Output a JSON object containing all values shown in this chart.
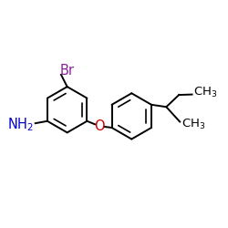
{
  "bg_color": "#ffffff",
  "bond_color": "#000000",
  "bond_lw": 1.4,
  "inner_lw": 1.2,
  "inner_scale": 0.74,
  "inner_shrink": 0.1,
  "r1cx": 0.275,
  "r1cy": 0.52,
  "r2cx": 0.57,
  "r2cy": 0.49,
  "r": 0.105,
  "ang": 30,
  "Br_color": "#882299",
  "NH2_color": "#0000cc",
  "O_color": "#cc0000",
  "bond_black": "#000000",
  "fontsize_label": 10.5,
  "fontsize_ch3": 9.5
}
